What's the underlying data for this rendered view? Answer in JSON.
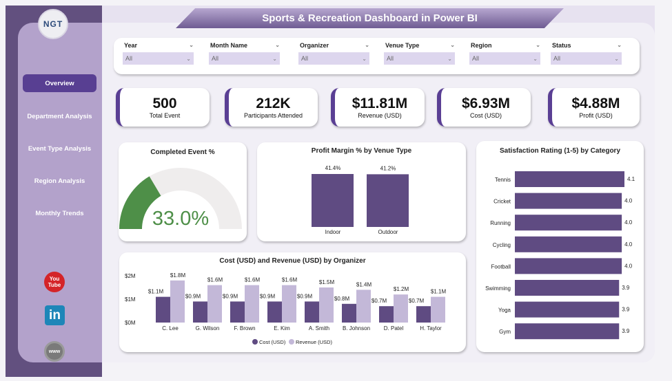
{
  "title": "Sports & Recreation Dashboard in Power BI",
  "logo": "NGT",
  "nav": [
    "Overview",
    "Department Analysis",
    "Event Type Analysis",
    "Region Analysis",
    "Monthly Trends"
  ],
  "social": [
    "youtube-icon",
    "linkedin-icon",
    "globe-icon"
  ],
  "filters": [
    {
      "label": "Year",
      "value": "All"
    },
    {
      "label": "Month Name",
      "value": "All"
    },
    {
      "label": "Organizer",
      "value": "All"
    },
    {
      "label": "Venue Type",
      "value": "All"
    },
    {
      "label": "Region",
      "value": "All"
    },
    {
      "label": "Status",
      "value": "All"
    }
  ],
  "kpis": [
    {
      "value": "500",
      "label": "Total Event"
    },
    {
      "value": "212K",
      "label": "Participants Attended"
    },
    {
      "value": "$11.81M",
      "label": "Revenue (USD)"
    },
    {
      "value": "$6.93M",
      "label": "Cost (USD)"
    },
    {
      "value": "$4.88M",
      "label": "Profit (USD)"
    }
  ],
  "colors": {
    "primary": "#5f4b82",
    "light": "#c3b8d8",
    "gauge": "#4e8f48",
    "accent": "#583f92"
  },
  "chart_data": [
    {
      "type": "gauge",
      "title": "Completed Event %",
      "value": 33.0,
      "label": "33.0%",
      "max": 100
    },
    {
      "type": "bar",
      "title": "Profit Margin % by Venue Type",
      "categories": [
        "Indoor",
        "Outdoor"
      ],
      "values": [
        41.4,
        41.2
      ],
      "labels": [
        "41.4%",
        "41.2%"
      ]
    },
    {
      "type": "bar",
      "orientation": "horizontal",
      "title": "Satisfaction Rating (1-5) by Category",
      "categories": [
        "Tennis",
        "Cricket",
        "Running",
        "Cycling",
        "Football",
        "Swimming",
        "Yoga",
        "Gym"
      ],
      "values": [
        4.1,
        4.0,
        4.0,
        4.0,
        4.0,
        3.9,
        3.9,
        3.9
      ]
    },
    {
      "type": "bar",
      "title": "Cost (USD) and Revenue (USD) by Organizer",
      "categories": [
        "C. Lee",
        "G. Wilson",
        "F. Brown",
        "E. Kim",
        "A. Smith",
        "B. Johnson",
        "D. Patel",
        "H. Taylor"
      ],
      "yticks": [
        "$0M",
        "$1M",
        "$2M"
      ],
      "ylim": [
        0,
        2
      ],
      "legend": "bottom",
      "series": [
        {
          "name": "Cost (USD)",
          "values": [
            1.1,
            0.9,
            0.9,
            0.9,
            0.9,
            0.8,
            0.7,
            0.7
          ],
          "labels": [
            "$1.1M",
            "$0.9M",
            "$0.9M",
            "$0.9M",
            "$0.9M",
            "$0.8M",
            "$0.7M",
            "$0.7M"
          ]
        },
        {
          "name": "Revenue (USD)",
          "values": [
            1.8,
            1.6,
            1.6,
            1.6,
            1.5,
            1.4,
            1.2,
            1.1
          ],
          "labels": [
            "$1.8M",
            "$1.6M",
            "$1.6M",
            "$1.6M",
            "$1.5M",
            "$1.4M",
            "$1.2M",
            "$1.1M"
          ]
        }
      ]
    }
  ]
}
